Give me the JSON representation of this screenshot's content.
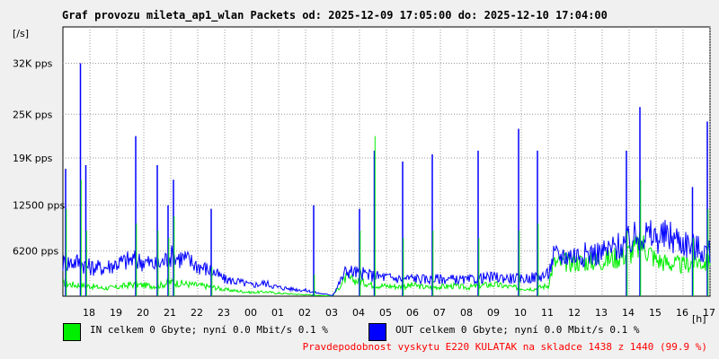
{
  "chart_data": {
    "type": "line",
    "title": "Graf provozu mileta_ap1_wlan Packets od: 2025-12-09 17:05:00 do: 2025-12-10 17:04:00",
    "ylabel": "[/s]",
    "xlabel": "[h]",
    "y_ticks": [
      {
        "value": 6200,
        "label": "6200 pps"
      },
      {
        "value": 12500,
        "label": "12500 pps"
      },
      {
        "value": 19000,
        "label": "19K pps"
      },
      {
        "value": 25000,
        "label": "25K pps"
      },
      {
        "value": 32000,
        "label": "32K pps"
      }
    ],
    "ylim": [
      0,
      37000
    ],
    "x_hours": [
      "18",
      "19",
      "20",
      "21",
      "22",
      "23",
      "00",
      "01",
      "02",
      "03",
      "04",
      "05",
      "06",
      "07",
      "08",
      "09",
      "10",
      "11",
      "12",
      "13",
      "14",
      "15",
      "16",
      "17"
    ],
    "xlim": [
      0,
      24
    ],
    "grid": true,
    "series": [
      {
        "name": "IN",
        "color": "#00ee00",
        "x": [
          0,
          0.5,
          1,
          1.5,
          2,
          2.5,
          3,
          3.5,
          4,
          4.5,
          5,
          5.5,
          6,
          6.5,
          7,
          7.5,
          8,
          8.5,
          9,
          9.5,
          10,
          10.5,
          11,
          11.3,
          11.5,
          12,
          12.5,
          13,
          13.5,
          14,
          14.5,
          15,
          15.5,
          16,
          16.5,
          17,
          17.5,
          18,
          18.2,
          18.5,
          19,
          19.5,
          20,
          20.5,
          21,
          21.5,
          22,
          22.5,
          23,
          23.5,
          24
        ],
        "y": [
          1800,
          1500,
          1400,
          1100,
          1200,
          1600,
          1500,
          1400,
          1900,
          1700,
          1500,
          1300,
          900,
          700,
          500,
          600,
          400,
          300,
          200,
          100,
          50,
          2500,
          2000,
          1800,
          1500,
          1400,
          1300,
          1500,
          1200,
          1300,
          1400,
          1200,
          1500,
          1600,
          1300,
          1100,
          1000,
          1500,
          4500,
          4600,
          4700,
          4800,
          4900,
          5300,
          6000,
          7200,
          5000,
          4500,
          4200,
          4800,
          4500
        ]
      },
      {
        "name": "OUT",
        "color": "#0000ff",
        "x": [
          0,
          0.5,
          1,
          1.5,
          2,
          2.5,
          3,
          3.5,
          4,
          4.5,
          5,
          5.5,
          6,
          6.5,
          7,
          7.5,
          8,
          8.5,
          9,
          9.5,
          10,
          10.5,
          11,
          11.3,
          11.5,
          12,
          12.5,
          13,
          13.5,
          14,
          14.5,
          15,
          15.5,
          16,
          16.5,
          17,
          17.5,
          18,
          18.2,
          18.5,
          19,
          19.5,
          20,
          20.5,
          21,
          21.5,
          22,
          22.5,
          23,
          23.5,
          24
        ],
        "y": [
          4500,
          4800,
          4000,
          3900,
          4500,
          5000,
          4800,
          4200,
          5500,
          5200,
          4200,
          3500,
          2300,
          2000,
          1500,
          1800,
          1200,
          1000,
          800,
          400,
          100,
          3500,
          3200,
          3000,
          2800,
          2600,
          2400,
          2500,
          2300,
          2400,
          2300,
          2200,
          2500,
          2600,
          2500,
          2400,
          2600,
          3000,
          5500,
          5600,
          5700,
          5800,
          6000,
          6700,
          7500,
          8500,
          8000,
          8200,
          7500,
          6600,
          6000
        ]
      }
    ],
    "spikes": [
      {
        "x": 0.1,
        "in": 12000,
        "out": 17500
      },
      {
        "x": 0.65,
        "in": 16000,
        "out": 32000
      },
      {
        "x": 0.85,
        "in": 9000,
        "out": 18000
      },
      {
        "x": 2.7,
        "in": 10000,
        "out": 22000
      },
      {
        "x": 3.5,
        "in": 9000,
        "out": 18000
      },
      {
        "x": 3.9,
        "in": 8000,
        "out": 12500
      },
      {
        "x": 4.1,
        "in": 11000,
        "out": 16000
      },
      {
        "x": 5.5,
        "in": 4000,
        "out": 12000
      },
      {
        "x": 9.3,
        "in": 3000,
        "out": 12500
      },
      {
        "x": 11.0,
        "in": 9000,
        "out": 12000
      },
      {
        "x": 11.55,
        "in": 22000,
        "out": 20000
      },
      {
        "x": 12.6,
        "in": 8000,
        "out": 18500
      },
      {
        "x": 13.7,
        "in": 9000,
        "out": 19500
      },
      {
        "x": 15.4,
        "in": 8000,
        "out": 20000
      },
      {
        "x": 16.9,
        "in": 9000,
        "out": 23000
      },
      {
        "x": 17.6,
        "in": 10000,
        "out": 20000
      },
      {
        "x": 20.9,
        "in": 9000,
        "out": 20000
      },
      {
        "x": 21.4,
        "in": 16000,
        "out": 26000
      },
      {
        "x": 23.35,
        "in": 8000,
        "out": 15000
      },
      {
        "x": 23.9,
        "in": 12000,
        "out": 24000
      }
    ]
  },
  "legend": {
    "in_text": "IN celkem 0 Gbyte; nyní   0.0 Mbit/s 0.1 %",
    "out_text": "OUT celkem 0 Gbyte; nyní   0.0 Mbit/s 0.1 %",
    "in_color": "#00ee00",
    "out_color": "#0000ff"
  },
  "footer": {
    "text": "Pravdepodobnost vyskytu E220 KULATAK na skladce 1438 z 1440 (99.9 %)",
    "color": "#ff0000"
  }
}
